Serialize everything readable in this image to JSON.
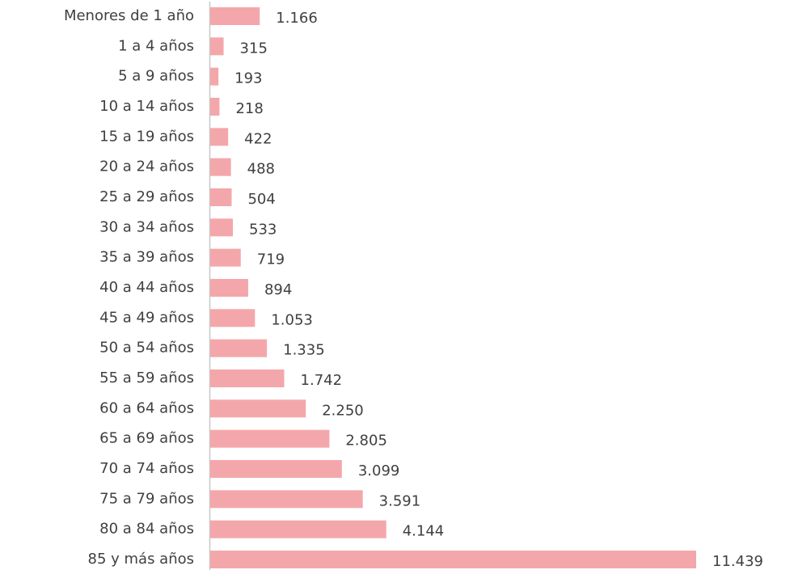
{
  "chart_data": {
    "type": "bar",
    "orientation": "horizontal",
    "categories": [
      "Menores de 1 año",
      "1 a 4 años",
      "5 a 9 años",
      "10 a 14 años",
      "15 a 19 años",
      "20 a 24 años",
      "25 a 29 años",
      "30 a 34 años",
      "35 a 39 años",
      "40 a 44 años",
      "45 a 49 años",
      "50 a 54 años",
      "55 a 59 años",
      "60 a 64 años",
      "65 a 69 años",
      "70 a 74 años",
      "75 a 79 años",
      "80 a 84 años",
      "85 y más años"
    ],
    "values": [
      1166,
      315,
      193,
      218,
      422,
      488,
      504,
      533,
      719,
      894,
      1053,
      1335,
      1742,
      2250,
      2805,
      3099,
      3591,
      4144,
      11439
    ],
    "value_labels": [
      "1.166",
      "315",
      "193",
      "218",
      "422",
      "488",
      "504",
      "533",
      "719",
      "894",
      "1.053",
      "1.335",
      "1.742",
      "2.250",
      "2.805",
      "3.099",
      "3.591",
      "4.144",
      "11.439"
    ],
    "color": "#f4a7ab"
  }
}
